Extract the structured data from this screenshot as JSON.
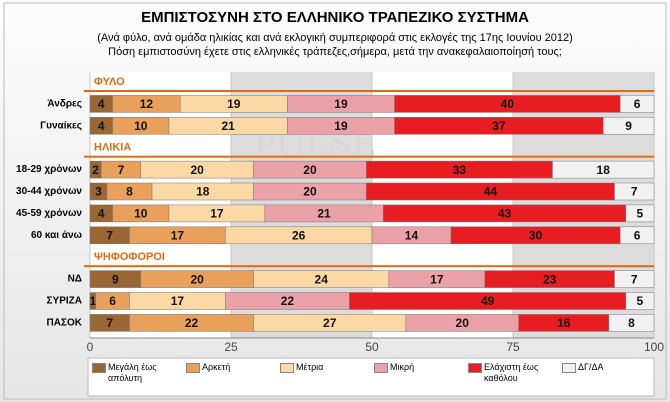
{
  "chart_data": {
    "type": "stacked-bar-horizontal",
    "title": "ΕΜΠΙΣΤΟΣΥΝΗ ΣΤΟ  ΕΛΛΗΝΙΚΟ ΤΡΑΠΕΖΙΚΟ ΣΥΣΤΗΜΑ",
    "subtitle": "(Ανά φύλο, ανά ομάδα ηλικίας και ανά εκλογική συμπεριφορά στις εκλογές της 17ης Ιουνίου 2012)",
    "question": "Πόση εμπιστοσύνη έχετε στις ελληνικές τράπεζες,σήμερα, μετά την ανακεφαλαιοποίησή τους;",
    "watermark": "PULSE",
    "categories": [
      "ΦΥΛΟ",
      "Άνδρες",
      "Γυναίκες",
      "ΗΛΙΚΙΑ",
      "18-29 χρόνων",
      "30-44 χρόνων",
      "45-59 χρόνων",
      "60 και άνω",
      "ΨΗΦΟΦΟΡΟΙ",
      "ΝΔ",
      "ΣΥΡΙΖΑ",
      "ΠΑΣΟΚ"
    ],
    "series": [
      {
        "name": "Μεγάλη έως απόλυτη",
        "color": "#9a6634",
        "values": [
          null,
          4,
          4,
          null,
          2,
          3,
          4,
          7,
          null,
          9,
          1,
          7
        ]
      },
      {
        "name": "Αρκετή",
        "color": "#e8a05a",
        "values": [
          null,
          12,
          10,
          null,
          7,
          8,
          10,
          17,
          null,
          20,
          6,
          22
        ]
      },
      {
        "name": "Μέτρια",
        "color": "#fcd9a4",
        "values": [
          null,
          19,
          21,
          null,
          20,
          18,
          17,
          26,
          null,
          24,
          17,
          27
        ]
      },
      {
        "name": "Μικρή",
        "color": "#eba1a8",
        "values": [
          null,
          19,
          19,
          null,
          20,
          20,
          21,
          14,
          null,
          17,
          22,
          20
        ]
      },
      {
        "name": "Ελάχιστη έως καθόλου",
        "color": "#e81d22",
        "values": [
          null,
          40,
          37,
          null,
          33,
          44,
          43,
          30,
          null,
          23,
          49,
          16
        ]
      },
      {
        "name": "ΔΓ/ΔΑ",
        "color": "#f2f2f2",
        "values": [
          null,
          6,
          9,
          null,
          18,
          7,
          5,
          6,
          null,
          7,
          5,
          8
        ]
      }
    ],
    "xlim": [
      0,
      100
    ],
    "xticks": [
      0,
      25,
      50,
      75,
      100
    ],
    "header_color": "#e06a10"
  }
}
